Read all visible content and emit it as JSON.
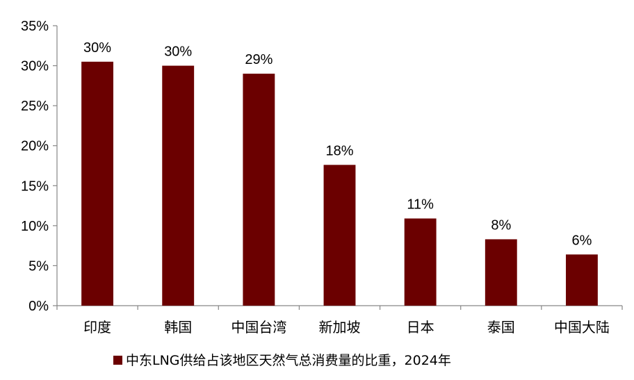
{
  "chart_data": {
    "type": "bar",
    "categories": [
      "印度",
      "韩国",
      "中国台湾",
      "新加坡",
      "日本",
      "泰国",
      "中国大陆"
    ],
    "series": [
      {
        "name": "中东LNG供给占该地区天然气总消费量的比重，2024年",
        "values": [
          30.5,
          30.0,
          29.0,
          17.6,
          10.9,
          8.3,
          6.4
        ],
        "data_labels": [
          "30%",
          "30%",
          "29%",
          "18%",
          "11%",
          "8%",
          "6%"
        ],
        "color": "#6B0000"
      }
    ],
    "y_ticks": [
      "0%",
      "5%",
      "10%",
      "15%",
      "20%",
      "25%",
      "30%",
      "35%"
    ],
    "ylim": [
      0,
      35
    ],
    "grid": false,
    "legend_position": "bottom"
  }
}
